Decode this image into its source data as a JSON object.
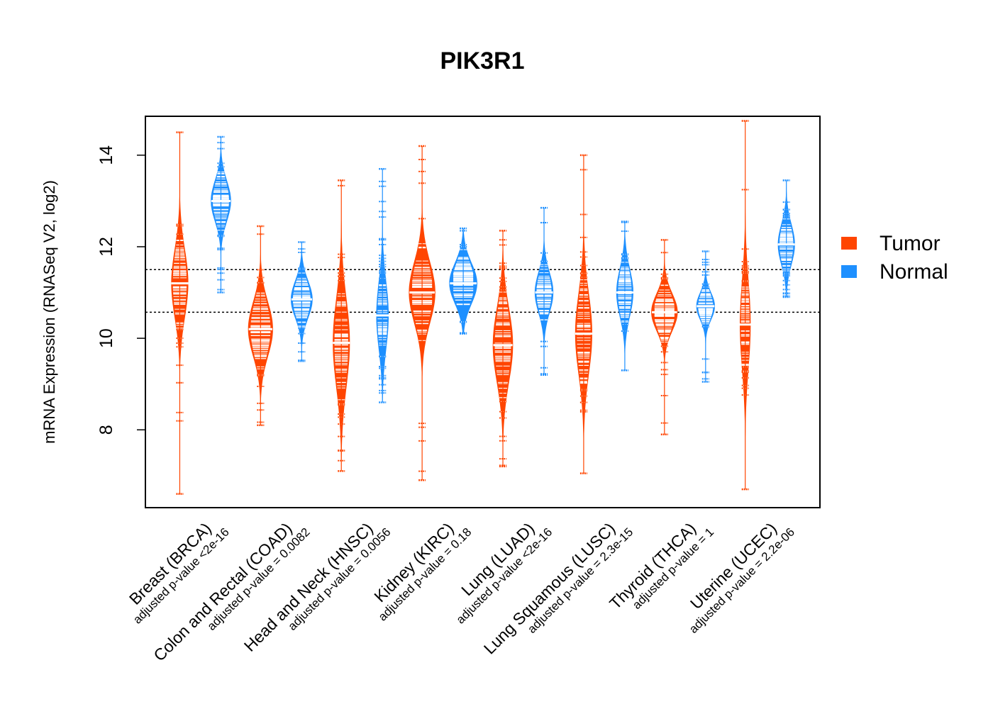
{
  "chart_data": {
    "type": "beanplot",
    "title": "PIK3R1",
    "xlabel": "",
    "ylabel": "mRNA Expression (RNASeq V2, log2)",
    "ylim": [
      6.3,
      14.85
    ],
    "yticks": [
      8,
      10,
      12,
      14
    ],
    "reference_lines": [
      10.57,
      11.5
    ],
    "legend": {
      "placement": "right",
      "entries": [
        {
          "name": "Tumor",
          "color": "#FF4500"
        },
        {
          "name": "Normal",
          "color": "#1E90FF"
        }
      ]
    },
    "categories": [
      {
        "label": "Breast (BRCA)",
        "pvalue": "adjusted p-value <2e-16",
        "tumor": {
          "median": 11.2,
          "q1": 10.7,
          "q3": 11.7,
          "min": 6.6,
          "max": 14.5,
          "width": 0.55
        },
        "normal": {
          "median": 13.0,
          "q1": 12.7,
          "q3": 13.3,
          "min": 11.0,
          "max": 14.4,
          "width": 0.65
        }
      },
      {
        "label": "Colon and Rectal (COAD)",
        "pvalue": "adjusted p-value = 0.0082",
        "tumor": {
          "median": 10.2,
          "q1": 9.8,
          "q3": 10.6,
          "min": 8.1,
          "max": 12.45,
          "width": 0.8
        },
        "normal": {
          "median": 10.85,
          "q1": 10.55,
          "q3": 11.1,
          "min": 9.5,
          "max": 12.1,
          "width": 0.7
        }
      },
      {
        "label": "Head and Neck (HNSC)",
        "pvalue": "adjusted p-value = 0.0056",
        "tumor": {
          "median": 9.9,
          "q1": 9.3,
          "q3": 10.6,
          "min": 7.1,
          "max": 13.45,
          "width": 0.55
        },
        "normal": {
          "median": 10.5,
          "q1": 10.0,
          "q3": 11.0,
          "min": 8.6,
          "max": 13.7,
          "width": 0.4
        }
      },
      {
        "label": "Kidney (KIRC)",
        "pvalue": "adjusted p-value = 0.18",
        "tumor": {
          "median": 11.0,
          "q1": 10.6,
          "q3": 11.5,
          "min": 6.9,
          "max": 14.2,
          "width": 0.85
        },
        "normal": {
          "median": 11.2,
          "q1": 10.9,
          "q3": 11.5,
          "min": 10.1,
          "max": 12.4,
          "width": 0.9
        }
      },
      {
        "label": "Lung (LUAD)",
        "pvalue": "adjusted p-value <2e-16",
        "tumor": {
          "median": 9.85,
          "q1": 9.3,
          "q3": 10.4,
          "min": 7.2,
          "max": 12.35,
          "width": 0.65
        },
        "normal": {
          "median": 11.0,
          "q1": 10.7,
          "q3": 11.3,
          "min": 9.2,
          "max": 12.85,
          "width": 0.6
        }
      },
      {
        "label": "Lung Squamous (LUSC)",
        "pvalue": "adjusted p-value = 2.3e-15",
        "tumor": {
          "median": 10.1,
          "q1": 9.5,
          "q3": 10.7,
          "min": 7.05,
          "max": 14.0,
          "width": 0.55
        },
        "normal": {
          "median": 11.0,
          "q1": 10.7,
          "q3": 11.4,
          "min": 9.3,
          "max": 12.55,
          "width": 0.55
        }
      },
      {
        "label": "Thyroid (THCA)",
        "pvalue": "adjusted p-value = 1",
        "tumor": {
          "median": 10.57,
          "q1": 10.3,
          "q3": 10.85,
          "min": 7.9,
          "max": 12.15,
          "width": 0.85
        },
        "normal": {
          "median": 10.7,
          "q1": 10.5,
          "q3": 10.9,
          "min": 9.05,
          "max": 11.9,
          "width": 0.6
        }
      },
      {
        "label": "Uterine (UCEC)",
        "pvalue": "adjusted p-value = 2.2e-06",
        "tumor": {
          "median": 10.3,
          "q1": 9.6,
          "q3": 10.9,
          "min": 6.7,
          "max": 14.75,
          "width": 0.35
        },
        "normal": {
          "median": 12.05,
          "q1": 11.75,
          "q3": 12.35,
          "min": 10.9,
          "max": 13.45,
          "width": 0.55
        }
      }
    ]
  }
}
